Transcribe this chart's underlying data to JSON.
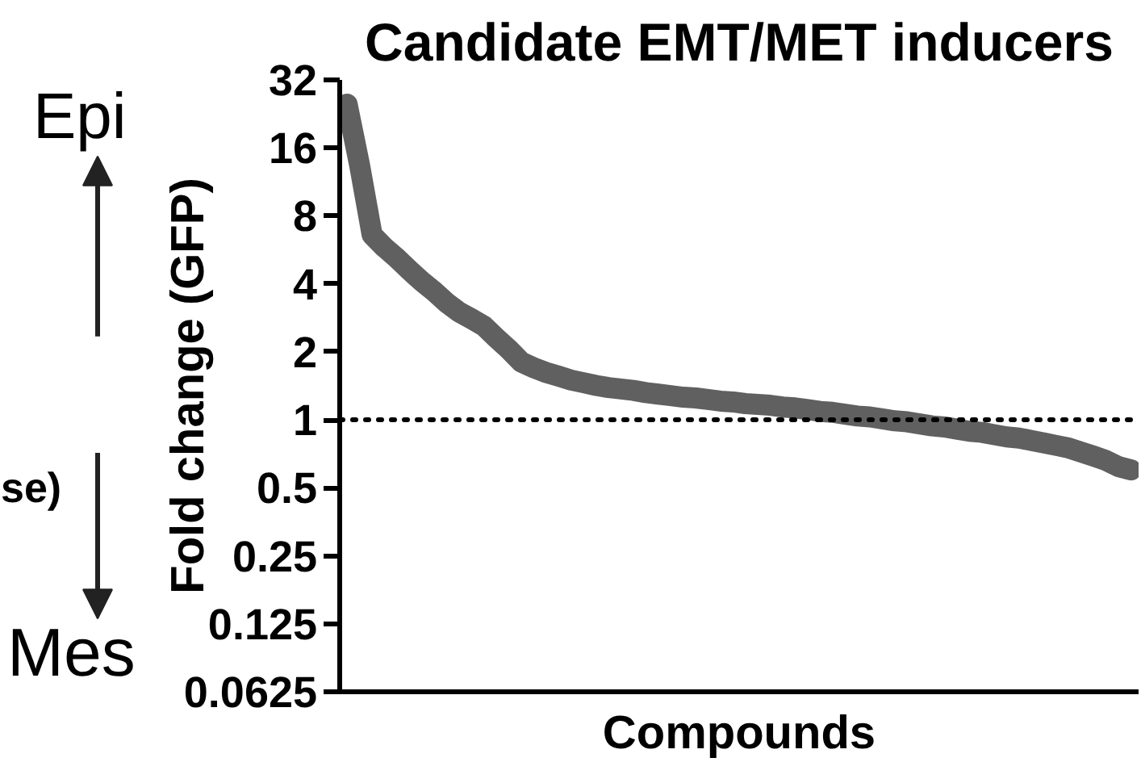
{
  "chart_data": {
    "type": "line",
    "title": "Candidate EMT/MET inducers",
    "xlabel": "Compounds",
    "ylabel": "Fold change (GFP)",
    "annotations": [
      "Epi",
      "Mes",
      "se)"
    ],
    "series": [
      {
        "color": "#606060",
        "values": [
          25,
          13.4,
          6.6,
          5.8,
          5.2,
          4.6,
          4.1,
          3.7,
          3.3,
          3.0,
          2.8,
          2.6,
          2.3,
          2.05,
          1.8,
          1.7,
          1.62,
          1.56,
          1.5,
          1.46,
          1.42,
          1.39,
          1.37,
          1.35,
          1.32,
          1.3,
          1.28,
          1.26,
          1.25,
          1.23,
          1.21,
          1.2,
          1.18,
          1.17,
          1.16,
          1.14,
          1.13,
          1.11,
          1.09,
          1.08,
          1.06,
          1.04,
          1.03,
          1.01,
          0.99,
          0.98,
          0.96,
          0.94,
          0.93,
          0.91,
          0.89,
          0.88,
          0.86,
          0.84,
          0.83,
          0.81,
          0.79,
          0.77,
          0.75,
          0.72,
          0.69,
          0.66,
          0.62,
          0.6
        ]
      }
    ],
    "categories": [
      null,
      null,
      null,
      null,
      null,
      null,
      null,
      null,
      null,
      null,
      null,
      null,
      null,
      null,
      null,
      null,
      null,
      null,
      null,
      null,
      null,
      null,
      null,
      null,
      null,
      null,
      null,
      null,
      null,
      null,
      null,
      null,
      null,
      null,
      null,
      null,
      null,
      null,
      null,
      null,
      null,
      null,
      null,
      null,
      null,
      null,
      null,
      null,
      null,
      null,
      null,
      null,
      null,
      null,
      null,
      null,
      null,
      null,
      null,
      null,
      null,
      null,
      null,
      null
    ],
    "ylim": [
      0.0625,
      32
    ],
    "yticks": [
      0.0625,
      0.125,
      0.25,
      0.5,
      1,
      2,
      4,
      8,
      16,
      32
    ],
    "tick_labels": "y",
    "log": true,
    "grid": false,
    "ref_lines": [
      {
        "axis": "y",
        "value": 1,
        "color": "#000000",
        "line_style": "dotted"
      }
    ]
  }
}
